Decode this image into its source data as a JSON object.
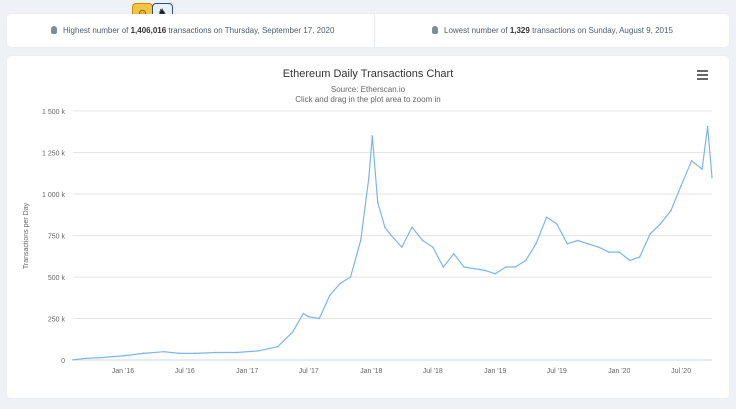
{
  "stats": {
    "highest": {
      "prefix": "Highest number of ",
      "value": "1,406,016",
      "suffix": " transactions on Thursday, September 17, 2020"
    },
    "lowest": {
      "prefix": "Lowest number of ",
      "value": "1,329",
      "suffix": " transactions on Sunday, August 9, 2015"
    }
  },
  "icons": {
    "stat": "lightbulb-icon",
    "menu": "hamburger-menu-icon",
    "emoji_1": "smiley-icon",
    "emoji_2": "unicorn-icon"
  },
  "chart_data": {
    "type": "line",
    "title": "Ethereum Daily Transactions Chart",
    "subtitle_lines": [
      "Source: Etherscan.io",
      "Click and drag in the plot area to zoom in"
    ],
    "xlabel": "",
    "ylabel": "Transactions per Day",
    "ylim": [
      0,
      1500000
    ],
    "yticks": [
      0,
      250000,
      500000,
      750000,
      1000000,
      1250000,
      1500000
    ],
    "ytick_labels": [
      "0",
      "250 k",
      "500 k",
      "750 k",
      "1 000 k",
      "1 250 k",
      "1 500 k"
    ],
    "xlim": [
      "2015-08-07",
      "2020-09-30"
    ],
    "xticks": [
      "2016-01-01",
      "2016-07-01",
      "2017-01-01",
      "2017-07-01",
      "2018-01-01",
      "2018-07-01",
      "2019-01-01",
      "2019-07-01",
      "2020-01-01",
      "2020-07-01"
    ],
    "xtick_labels": [
      "Jan '16",
      "Jul '16",
      "Jan '17",
      "Jul '17",
      "Jan '18",
      "Jul '18",
      "Jan '19",
      "Jul '19",
      "Jan '20",
      "Jul '20"
    ],
    "grid": true,
    "legend": "none",
    "series_color": "#7cb5ec",
    "series": [
      {
        "x": [
          "2015-08-07",
          "2015-09-15",
          "2015-11-01",
          "2016-01-01",
          "2016-03-01",
          "2016-05-01",
          "2016-06-15",
          "2016-08-01",
          "2016-10-01",
          "2016-12-01",
          "2017-02-01",
          "2017-04-01",
          "2017-05-15",
          "2017-06-15",
          "2017-07-01",
          "2017-08-01",
          "2017-09-01",
          "2017-10-01",
          "2017-11-01",
          "2017-12-01",
          "2017-12-25",
          "2018-01-04",
          "2018-01-20",
          "2018-02-10",
          "2018-03-01",
          "2018-04-01",
          "2018-05-01",
          "2018-06-01",
          "2018-07-01",
          "2018-08-01",
          "2018-09-01",
          "2018-10-01",
          "2018-11-01",
          "2018-12-01",
          "2019-01-01",
          "2019-02-01",
          "2019-03-01",
          "2019-04-01",
          "2019-05-01",
          "2019-06-01",
          "2019-07-01",
          "2019-08-01",
          "2019-09-01",
          "2019-10-01",
          "2019-11-01",
          "2019-12-01",
          "2020-01-01",
          "2020-02-01",
          "2020-03-01",
          "2020-04-01",
          "2020-05-01",
          "2020-06-01",
          "2020-07-01",
          "2020-08-01",
          "2020-09-01",
          "2020-09-17",
          "2020-09-30"
        ],
        "values": [
          1329,
          10000,
          15000,
          25000,
          40000,
          50000,
          40000,
          40000,
          45000,
          45000,
          55000,
          80000,
          170000,
          280000,
          260000,
          250000,
          390000,
          460000,
          500000,
          720000,
          1100000,
          1350000,
          950000,
          800000,
          750000,
          680000,
          800000,
          720000,
          680000,
          560000,
          640000,
          560000,
          550000,
          540000,
          520000,
          560000,
          560000,
          600000,
          700000,
          860000,
          820000,
          700000,
          720000,
          700000,
          680000,
          650000,
          650000,
          600000,
          620000,
          760000,
          820000,
          900000,
          1050000,
          1200000,
          1150000,
          1406016,
          1100000
        ]
      }
    ]
  }
}
